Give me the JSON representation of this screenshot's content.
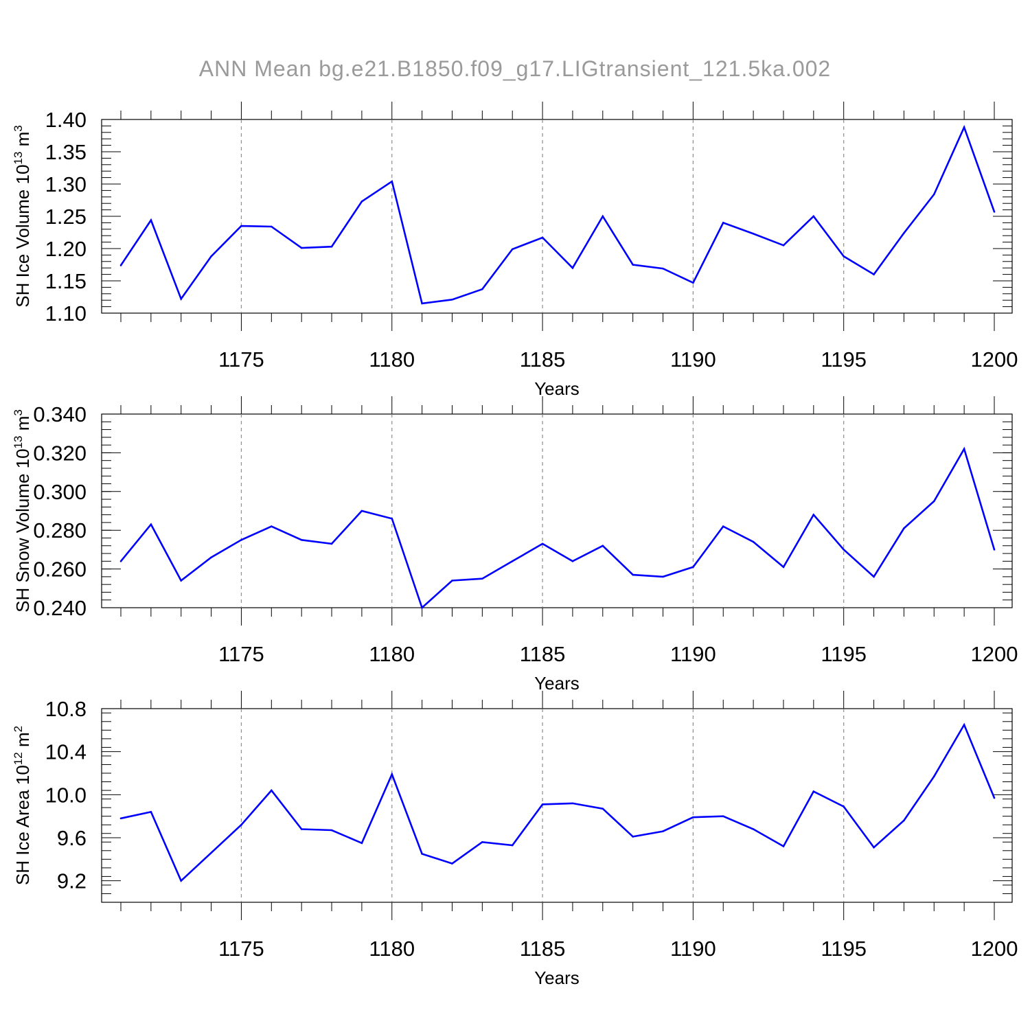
{
  "title": "ANN Mean bg.e21.B1850.f09_g17.LIGtransient_121.5ka.002",
  "colors": {
    "line": "#0000ff",
    "frame": "#000000",
    "grid": "#8c8c8c",
    "title": "#9a9a9a"
  },
  "chart_data": [
    {
      "type": "line",
      "ylabel_main": "SH Ice Volume 10",
      "ylabel_exp": "13",
      "ylabel_unit": " m",
      "ylabel_unit_exp": "3",
      "xlabel": "Years",
      "xlim": [
        1171,
        1200
      ],
      "ylim": [
        1.1,
        1.4
      ],
      "yticks": [
        1.1,
        1.15,
        1.2,
        1.25,
        1.3,
        1.35,
        1.4
      ],
      "ytick_labels": [
        "1.10",
        "1.15",
        "1.20",
        "1.25",
        "1.30",
        "1.35",
        "1.40"
      ],
      "xticks": [
        1175,
        1180,
        1185,
        1190,
        1195,
        1200
      ],
      "xtick_labels": [
        "1175",
        "1180",
        "1185",
        "1190",
        "1195",
        "1200"
      ],
      "x": [
        1171,
        1172,
        1173,
        1174,
        1175,
        1176,
        1177,
        1178,
        1179,
        1180,
        1181,
        1182,
        1183,
        1184,
        1185,
        1186,
        1187,
        1188,
        1189,
        1190,
        1191,
        1192,
        1193,
        1194,
        1195,
        1196,
        1197,
        1198,
        1199,
        1200
      ],
      "values": [
        1.174,
        1.244,
        1.122,
        1.188,
        1.235,
        1.234,
        1.201,
        1.203,
        1.273,
        1.304,
        1.115,
        1.121,
        1.137,
        1.199,
        1.217,
        1.17,
        1.25,
        1.175,
        1.169,
        1.147,
        1.24,
        1.223,
        1.205,
        1.25,
        1.188,
        1.16,
        1.224,
        1.284,
        1.388,
        1.257
      ]
    },
    {
      "type": "line",
      "ylabel_main": "SH Snow Volume 10",
      "ylabel_exp": "13",
      "ylabel_unit": " m",
      "ylabel_unit_exp": "3",
      "xlabel": "Years",
      "xlim": [
        1171,
        1200
      ],
      "ylim": [
        0.24,
        0.34
      ],
      "yticks": [
        0.24,
        0.26,
        0.28,
        0.3,
        0.32,
        0.34
      ],
      "ytick_labels": [
        "0.240",
        "0.260",
        "0.280",
        "0.300",
        "0.320",
        "0.340"
      ],
      "xticks": [
        1175,
        1180,
        1185,
        1190,
        1195,
        1200
      ],
      "xtick_labels": [
        "1175",
        "1180",
        "1185",
        "1190",
        "1195",
        "1200"
      ],
      "x": [
        1171,
        1172,
        1173,
        1174,
        1175,
        1176,
        1177,
        1178,
        1179,
        1180,
        1181,
        1182,
        1183,
        1184,
        1185,
        1186,
        1187,
        1188,
        1189,
        1190,
        1191,
        1192,
        1193,
        1194,
        1195,
        1196,
        1197,
        1198,
        1199,
        1200
      ],
      "values": [
        0.264,
        0.283,
        0.254,
        0.266,
        0.275,
        0.282,
        0.275,
        0.273,
        0.29,
        0.286,
        0.24,
        0.254,
        0.255,
        0.264,
        0.273,
        0.264,
        0.272,
        0.257,
        0.256,
        0.261,
        0.282,
        0.274,
        0.261,
        0.288,
        0.27,
        0.256,
        0.281,
        0.295,
        0.322,
        0.27
      ]
    },
    {
      "type": "line",
      "ylabel_main": "SH Ice Area 10",
      "ylabel_exp": "12",
      "ylabel_unit": " m",
      "ylabel_unit_exp": "2",
      "xlabel": "Years",
      "xlim": [
        1171,
        1200
      ],
      "ylim": [
        9.0,
        10.8
      ],
      "yticks": [
        9.2,
        9.6,
        10.0,
        10.4,
        10.8
      ],
      "ytick_labels": [
        "9.2",
        "9.6",
        "10.0",
        "10.4",
        "10.8"
      ],
      "xticks": [
        1175,
        1180,
        1185,
        1190,
        1195,
        1200
      ],
      "xtick_labels": [
        "1175",
        "1180",
        "1185",
        "1190",
        "1195",
        "1200"
      ],
      "x": [
        1171,
        1172,
        1173,
        1174,
        1175,
        1176,
        1177,
        1178,
        1179,
        1180,
        1181,
        1182,
        1183,
        1184,
        1185,
        1186,
        1187,
        1188,
        1189,
        1190,
        1191,
        1192,
        1193,
        1194,
        1195,
        1196,
        1197,
        1198,
        1199,
        1200
      ],
      "values": [
        9.78,
        9.84,
        9.2,
        9.46,
        9.72,
        10.04,
        9.68,
        9.67,
        9.55,
        10.19,
        9.45,
        9.36,
        9.56,
        9.53,
        9.91,
        9.92,
        9.87,
        9.61,
        9.66,
        9.79,
        9.8,
        9.68,
        9.52,
        10.03,
        9.89,
        9.51,
        9.76,
        10.17,
        10.65,
        9.97
      ]
    }
  ]
}
